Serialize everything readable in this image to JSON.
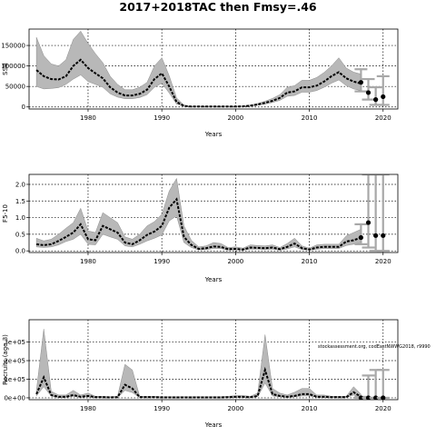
{
  "figure": {
    "title": "2017+2018TAC then Fmsy=.46",
    "watermark": "stockassessment.org, codEastNWWG2018, r9990"
  },
  "chart_data": [
    {
      "type": "area",
      "id": "ssb",
      "ylabel": "SSB",
      "xlabel": "Years",
      "xlim": [
        1972,
        2022
      ],
      "ylim": [
        -5000,
        190000
      ],
      "xticks": [
        1980,
        1990,
        2000,
        2010,
        2020
      ],
      "yticks": [
        0,
        50000,
        100000,
        150000
      ],
      "ytick_labels": [
        "0",
        "50000",
        "100000",
        "150000"
      ],
      "grid": true,
      "series": [
        {
          "x": [
            1973,
            1974,
            1975,
            1976,
            1977,
            1978,
            1979,
            1980,
            1981,
            1982,
            1983,
            1984,
            1985,
            1986,
            1987,
            1988,
            1989,
            1990,
            1991,
            1992,
            1993,
            1994,
            1995,
            1996,
            1997,
            1998,
            1999,
            2000,
            2001,
            2002,
            2003,
            2004,
            2005,
            2006,
            2007,
            2008,
            2009,
            2010,
            2011,
            2012,
            2013,
            2014,
            2015,
            2016,
            2017
          ],
          "mean": [
            90000,
            75000,
            68000,
            67000,
            75000,
            100000,
            115000,
            95000,
            82000,
            70000,
            48000,
            35000,
            28000,
            28000,
            32000,
            42000,
            68000,
            82000,
            50000,
            12000,
            2500,
            1000,
            1000,
            1000,
            1000,
            1000,
            1000,
            1000,
            1500,
            3000,
            6000,
            10000,
            15000,
            22000,
            35000,
            38000,
            48000,
            48000,
            52000,
            62000,
            75000,
            85000,
            70000,
            62000,
            57000
          ],
          "lower": [
            50000,
            44000,
            45000,
            47000,
            55000,
            68000,
            78000,
            62000,
            55000,
            48000,
            32000,
            24000,
            20000,
            20000,
            23000,
            30000,
            48000,
            58000,
            34000,
            7000,
            1500,
            500,
            500,
            500,
            500,
            500,
            500,
            500,
            800,
            2000,
            4000,
            7000,
            11000,
            16000,
            26000,
            28000,
            36000,
            36000,
            40000,
            48000,
            58000,
            66000,
            52000,
            44000,
            40000
          ],
          "upper": [
            170000,
            125000,
            105000,
            100000,
            115000,
            165000,
            185000,
            155000,
            130000,
            108000,
            75000,
            55000,
            42000,
            42000,
            48000,
            60000,
            100000,
            120000,
            76000,
            22000,
            4500,
            1800,
            1800,
            1800,
            1800,
            1800,
            1800,
            1800,
            2500,
            4500,
            8500,
            14000,
            21000,
            30000,
            48000,
            52000,
            65000,
            65000,
            72000,
            84000,
            100000,
            120000,
            95000,
            85000,
            80000
          ]
        }
      ],
      "forecast": {
        "x": [
          2017,
          2018,
          2019,
          2020
        ],
        "mean": [
          60000,
          35000,
          18000,
          25000
        ],
        "lower": [
          38000,
          18000,
          5000,
          5000
        ],
        "upper": [
          92000,
          68000,
          48000,
          75000
        ]
      }
    },
    {
      "type": "area",
      "id": "fbar",
      "ylabel": "F5-10",
      "xlabel": "Years",
      "xlim": [
        1972,
        2022
      ],
      "ylim": [
        -0.05,
        2.3
      ],
      "xticks": [
        1980,
        1990,
        2000,
        2010,
        2020
      ],
      "yticks": [
        0.0,
        0.5,
        1.0,
        1.5,
        2.0
      ],
      "ytick_labels": [
        "0.0",
        "0.5",
        "1.0",
        "1.5",
        "2.0"
      ],
      "grid": true,
      "series": [
        {
          "x": [
            1973,
            1974,
            1975,
            1976,
            1977,
            1978,
            1979,
            1980,
            1981,
            1982,
            1983,
            1984,
            1985,
            1986,
            1987,
            1988,
            1989,
            1990,
            1991,
            1992,
            1993,
            1994,
            1995,
            1996,
            1997,
            1998,
            1999,
            2000,
            2001,
            2002,
            2003,
            2004,
            2005,
            2006,
            2007,
            2008,
            2009,
            2010,
            2011,
            2012,
            2013,
            2014,
            2015,
            2016,
            2017
          ],
          "mean": [
            0.2,
            0.17,
            0.2,
            0.3,
            0.42,
            0.55,
            0.8,
            0.35,
            0.32,
            0.75,
            0.65,
            0.55,
            0.25,
            0.2,
            0.32,
            0.48,
            0.58,
            0.75,
            1.3,
            1.55,
            0.42,
            0.18,
            0.06,
            0.08,
            0.13,
            0.12,
            0.05,
            0.06,
            0.04,
            0.1,
            0.09,
            0.08,
            0.1,
            0.05,
            0.12,
            0.22,
            0.08,
            0.04,
            0.1,
            0.12,
            0.12,
            0.12,
            0.28,
            0.32,
            0.4
          ],
          "lower": [
            0.12,
            0.1,
            0.12,
            0.18,
            0.28,
            0.35,
            0.5,
            0.2,
            0.18,
            0.5,
            0.42,
            0.35,
            0.15,
            0.12,
            0.2,
            0.3,
            0.38,
            0.48,
            0.9,
            1.05,
            0.25,
            0.1,
            0.03,
            0.04,
            0.07,
            0.07,
            0.02,
            0.03,
            0.02,
            0.05,
            0.05,
            0.04,
            0.05,
            0.02,
            0.06,
            0.12,
            0.04,
            0.02,
            0.05,
            0.07,
            0.07,
            0.07,
            0.16,
            0.2,
            0.25
          ],
          "upper": [
            0.38,
            0.3,
            0.35,
            0.5,
            0.68,
            0.85,
            1.28,
            0.6,
            0.55,
            1.15,
            1.0,
            0.85,
            0.42,
            0.35,
            0.5,
            0.75,
            0.88,
            1.1,
            1.8,
            2.18,
            0.75,
            0.32,
            0.12,
            0.15,
            0.25,
            0.22,
            0.1,
            0.12,
            0.08,
            0.18,
            0.16,
            0.15,
            0.18,
            0.1,
            0.22,
            0.38,
            0.15,
            0.08,
            0.18,
            0.2,
            0.2,
            0.2,
            0.45,
            0.55,
            0.65
          ]
        }
      ],
      "forecast": {
        "x": [
          2017,
          2018,
          2019,
          2020
        ],
        "mean": [
          0.4,
          0.85,
          0.46,
          0.46
        ],
        "lower": [
          0.2,
          0.1,
          0.0,
          0.0
        ],
        "upper": [
          0.8,
          2.3,
          2.3,
          2.3
        ]
      }
    },
    {
      "type": "area",
      "id": "recruits",
      "ylabel": "Recruits (age 3)",
      "xlabel": "Years",
      "xlim": [
        1972,
        2022
      ],
      "ylim": [
        -10000,
        420000
      ],
      "xticks": [
        1980,
        1990,
        2000,
        2010,
        2020
      ],
      "yticks": [
        0,
        100000,
        200000,
        300000
      ],
      "ytick_labels": [
        "0e+00",
        "1e+05",
        "2e+05",
        "3e+05"
      ],
      "grid": true,
      "series": [
        {
          "x": [
            1973,
            1974,
            1975,
            1976,
            1977,
            1978,
            1979,
            1980,
            1981,
            1982,
            1983,
            1984,
            1985,
            1986,
            1987,
            1988,
            1989,
            1990,
            1991,
            1992,
            1993,
            1994,
            1995,
            1996,
            1997,
            1998,
            1999,
            2000,
            2001,
            2002,
            2003,
            2004,
            2005,
            2006,
            2007,
            2008,
            2009,
            2010,
            2011,
            2012,
            2013,
            2014,
            2015,
            2016,
            2017
          ],
          "mean": [
            20000,
            110000,
            15000,
            5000,
            5000,
            15000,
            5000,
            10000,
            3000,
            3000,
            2000,
            3000,
            70000,
            50000,
            3000,
            3000,
            3000,
            2000,
            2000,
            2000,
            2000,
            2000,
            2000,
            2000,
            2000,
            2000,
            3000,
            5000,
            5000,
            3000,
            10000,
            150000,
            20000,
            10000,
            5000,
            10000,
            20000,
            20000,
            5000,
            5000,
            3000,
            3000,
            3000,
            30000,
            5000
          ],
          "lower": [
            10000,
            60000,
            8000,
            2000,
            2000,
            8000,
            2000,
            5000,
            1000,
            1000,
            1000,
            1000,
            40000,
            28000,
            1000,
            1000,
            1000,
            500,
            500,
            500,
            500,
            500,
            500,
            500,
            500,
            500,
            1000,
            2000,
            2000,
            1000,
            5000,
            80000,
            10000,
            5000,
            2000,
            5000,
            10000,
            10000,
            2000,
            2000,
            1000,
            1000,
            1000,
            15000,
            1000
          ],
          "upper": [
            40000,
            370000,
            35000,
            15000,
            15000,
            40000,
            15000,
            25000,
            8000,
            8000,
            6000,
            8000,
            180000,
            150000,
            8000,
            8000,
            8000,
            6000,
            6000,
            6000,
            6000,
            6000,
            6000,
            6000,
            6000,
            6000,
            8000,
            12000,
            12000,
            8000,
            25000,
            340000,
            50000,
            25000,
            15000,
            30000,
            50000,
            50000,
            15000,
            15000,
            8000,
            8000,
            8000,
            60000,
            20000
          ]
        }
      ],
      "forecast": {
        "x": [
          2017,
          2018,
          2019,
          2020
        ],
        "mean": [
          0,
          0,
          0,
          0
        ],
        "lower": [
          0,
          0,
          0,
          0
        ],
        "upper": [
          5000,
          120000,
          150000,
          150000
        ]
      }
    }
  ]
}
